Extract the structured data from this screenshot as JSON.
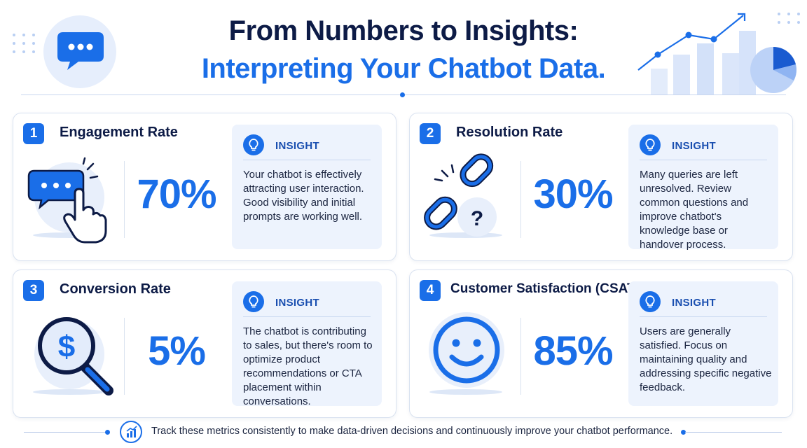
{
  "header": {
    "title_line1": "From Numbers to Insights:",
    "title_line2": "Interpreting Your Chatbot Data."
  },
  "colors": {
    "accent": "#1a6ee8",
    "navy": "#0d1b46",
    "panel": "#edf3fd"
  },
  "metrics": [
    {
      "number": "1",
      "title": "Engagement Rate",
      "value": "70%",
      "icon": "chat-click-icon",
      "insight_label": "INSIGHT",
      "insight_text": "Your chatbot is effectively attracting user interaction. Good visibility and initial prompts are working well."
    },
    {
      "number": "2",
      "title": "Resolution Rate",
      "value": "30%",
      "icon": "broken-link-question-icon",
      "insight_label": "INSIGHT",
      "insight_text": "Many queries are left unresolved. Review common questions and improve chatbot's knowledge base or handover process."
    },
    {
      "number": "3",
      "title": "Conversion Rate",
      "value": "5%",
      "icon": "dollar-magnifier-icon",
      "insight_label": "INSIGHT",
      "insight_text": "The chatbot is contributing to sales, but there's room to optimize product recommendations or CTA placement within conversations."
    },
    {
      "number": "4",
      "title": "Customer Satisfaction (CSAT)",
      "value": "85%",
      "icon": "smiley-icon",
      "insight_label": "INSIGHT",
      "insight_text": "Users are generally satisfied. Focus on maintaining quality and addressing specific negative feedback."
    }
  ],
  "footer": {
    "text": "Track these metrics consistently to make data-driven decisions and continuously improve your chatbot performance."
  }
}
